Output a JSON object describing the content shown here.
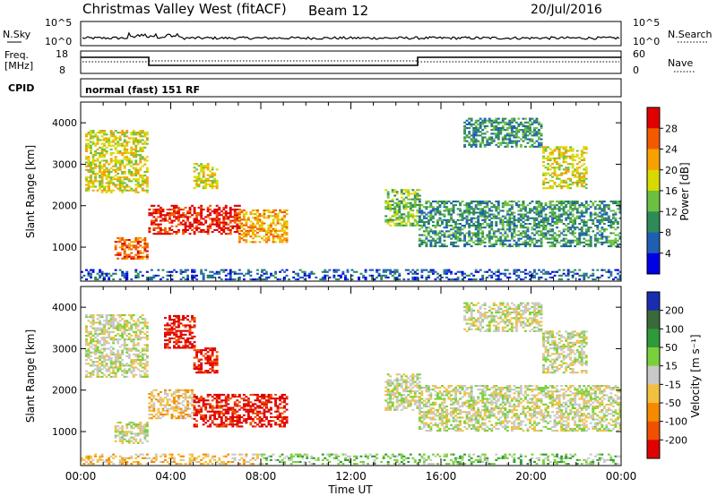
{
  "header": {
    "title": "Christmas Valley West (fitACF)",
    "beam": "Beam 12",
    "date": "20/Jul/2016"
  },
  "noise_panel": {
    "left_label": "N.Sky",
    "right_label": "N.Search",
    "left_ticks": [
      "10^5",
      "10^0"
    ],
    "right_ticks": [
      "10^5",
      "10^0"
    ]
  },
  "freq_panel": {
    "left_label_1": "Freq.",
    "left_label_2": "[MHz]",
    "right_label": "Nave",
    "left_ticks": [
      "18",
      "8"
    ],
    "right_ticks": [
      "60",
      "0"
    ]
  },
  "cpid_panel": {
    "label": "CPID",
    "mode": "normal (fast) 151 RF"
  },
  "chart_data": [
    {
      "type": "heatmap",
      "parameter": "power",
      "ylabel": "Slant Range [km]",
      "xlabel": "Time UT",
      "ylim": [
        180,
        4500
      ],
      "yticks": [
        "1000",
        "2000",
        "3000",
        "4000"
      ],
      "xticks": [
        "00:00",
        "04:00",
        "08:00",
        "12:00",
        "16:00",
        "20:00",
        "00:00"
      ],
      "colorbar_label": "Power [dB]",
      "colorbar_ticks": [
        "28",
        "24",
        "20",
        "16",
        "12",
        "8",
        "4"
      ],
      "colorbar_colors": [
        "#e00000",
        "#f25a00",
        "#f7a100",
        "#d9d900",
        "#6cc040",
        "#2e8b57",
        "#1e5fb4",
        "#0000e6"
      ],
      "regions": [
        {
          "t0": 0.2,
          "t1": 3.0,
          "r0": 2300,
          "r1": 3800,
          "level": 3
        },
        {
          "t0": 1.5,
          "t1": 3.0,
          "r0": 700,
          "r1": 1200,
          "level": 1
        },
        {
          "t0": 3.0,
          "t1": 7.0,
          "r0": 1300,
          "r1": 2000,
          "level": 0
        },
        {
          "t0": 7.0,
          "t1": 9.1,
          "r0": 1100,
          "r1": 1900,
          "level": 2
        },
        {
          "t0": 5.0,
          "t1": 6.0,
          "r0": 2400,
          "r1": 3000,
          "level": 3
        },
        {
          "t0": 13.5,
          "t1": 15.0,
          "r0": 1500,
          "r1": 2400,
          "level": 4
        },
        {
          "t0": 15.0,
          "t1": 24.0,
          "r0": 1000,
          "r1": 2100,
          "level": 5
        },
        {
          "t0": 17.0,
          "t1": 20.5,
          "r0": 3400,
          "r1": 4100,
          "level": 5
        },
        {
          "t0": 20.5,
          "t1": 22.5,
          "r0": 2400,
          "r1": 3400,
          "level": 3
        },
        {
          "t0": 0.0,
          "t1": 24.0,
          "r0": 200,
          "r1": 450,
          "level": 6
        }
      ]
    },
    {
      "type": "heatmap",
      "parameter": "velocity",
      "ylabel": "Slant Range [km]",
      "xlabel": "Time UT",
      "ylim": [
        180,
        4500
      ],
      "yticks": [
        "1000",
        "2000",
        "3000",
        "4000"
      ],
      "xticks": [
        "00:00",
        "04:00",
        "08:00",
        "12:00",
        "16:00",
        "20:00",
        "00:00"
      ],
      "colorbar_label": "Velocity [m s⁻¹]",
      "colorbar_ticks": [
        "200",
        "100",
        "50",
        "15",
        "-15",
        "-50",
        "-100",
        "-200"
      ],
      "colorbar_colors": [
        "#1a2db0",
        "#3a6a3a",
        "#2e9a3a",
        "#7ad03a",
        "#c8c8c8",
        "#f2c040",
        "#f58a00",
        "#f05000",
        "#e00000"
      ],
      "regions": [
        {
          "t0": 0.2,
          "t1": 3.0,
          "r0": 2300,
          "r1": 3800,
          "level": 4
        },
        {
          "t0": 1.5,
          "t1": 3.0,
          "r0": 700,
          "r1": 1200,
          "level": 4
        },
        {
          "t0": 3.0,
          "t1": 5.0,
          "r0": 1300,
          "r1": 2000,
          "level": 5
        },
        {
          "t0": 5.0,
          "t1": 9.1,
          "r0": 1100,
          "r1": 1900,
          "level": 8
        },
        {
          "t0": 5.0,
          "t1": 6.0,
          "r0": 2400,
          "r1": 3000,
          "level": 8
        },
        {
          "t0": 3.7,
          "t1": 5.0,
          "r0": 3000,
          "r1": 3800,
          "level": 8
        },
        {
          "t0": 13.5,
          "t1": 15.0,
          "r0": 1500,
          "r1": 2400,
          "level": 4
        },
        {
          "t0": 15.0,
          "t1": 24.0,
          "r0": 1000,
          "r1": 2100,
          "level": 4
        },
        {
          "t0": 17.0,
          "t1": 20.5,
          "r0": 3400,
          "r1": 4100,
          "level": 4
        },
        {
          "t0": 20.5,
          "t1": 22.5,
          "r0": 2400,
          "r1": 3400,
          "level": 4
        },
        {
          "t0": 0.0,
          "t1": 8.0,
          "r0": 200,
          "r1": 450,
          "level": 5
        },
        {
          "t0": 8.0,
          "t1": 24.0,
          "r0": 200,
          "r1": 450,
          "level": 3
        }
      ]
    }
  ]
}
